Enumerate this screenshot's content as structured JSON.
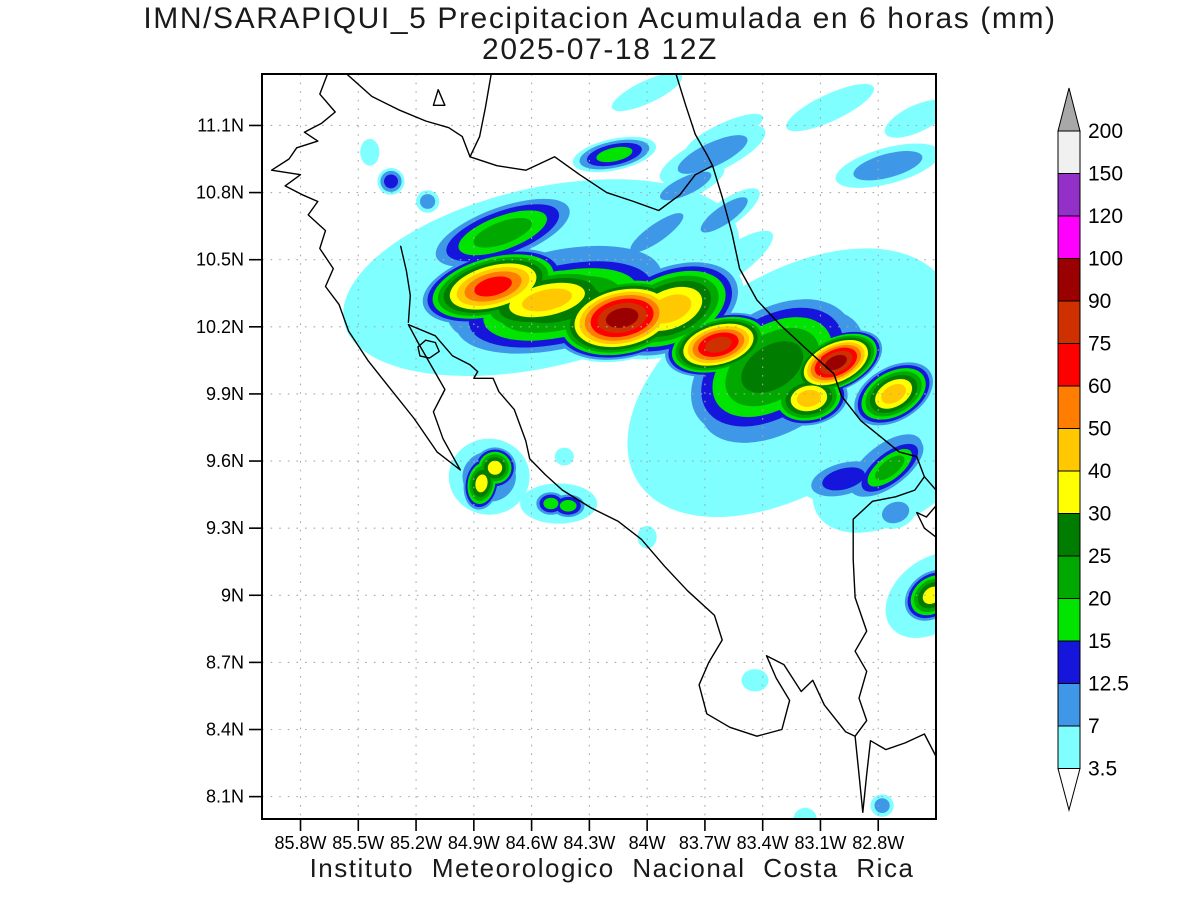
{
  "title": "IMN/SARAPIQUI_5 Precipitacion Acumulada en 6 horas (mm)",
  "subtitle": "2025-07-18 12Z",
  "footer": "Instituto Meteorologico Nacional Costa Rica",
  "axes": {
    "lat_tick_labels": [
      "11.1N",
      "10.8N",
      "10.5N",
      "10.2N",
      "9.9N",
      "9.6N",
      "9.3N",
      "9N",
      "8.7N",
      "8.4N",
      "8.1N"
    ],
    "lat_tick_values": [
      11.1,
      10.8,
      10.5,
      10.2,
      9.9,
      9.6,
      9.3,
      9.0,
      8.7,
      8.4,
      8.1
    ],
    "lon_tick_labels": [
      "85.8W",
      "85.5W",
      "85.2W",
      "84.9W",
      "84.6W",
      "84.3W",
      "84W",
      "83.7W",
      "83.4W",
      "83.1W",
      "82.8W"
    ],
    "lon_tick_values": [
      85.8,
      85.5,
      85.2,
      84.9,
      84.6,
      84.3,
      84.0,
      83.7,
      83.4,
      83.1,
      82.8
    ],
    "lon_left_w": 86.0,
    "lon_right_w": 82.5,
    "lat_top": 11.33,
    "lat_bottom": 8.0,
    "grid_color": "#A8A8A8",
    "frame_color": "#000000"
  },
  "colorbar": {
    "levels": [
      3.5,
      7,
      12.5,
      15,
      20,
      25,
      30,
      40,
      50,
      60,
      75,
      90,
      100,
      120,
      150,
      200
    ],
    "labels": [
      "3.5",
      "7",
      "12.5",
      "15",
      "20",
      "25",
      "30",
      "40",
      "50",
      "60",
      "75",
      "90",
      "100",
      "120",
      "150",
      "200"
    ],
    "colors": [
      "#7FFFFF",
      "#3F97E8",
      "#1515DC",
      "#00E400",
      "#00A800",
      "#007C00",
      "#FFFF00",
      "#FFC800",
      "#FF7D00",
      "#FF0000",
      "#CF3000",
      "#9A0000",
      "#FF00FF",
      "#9230C8",
      "#F0F0F0"
    ],
    "over_color": "#A8A8A8",
    "under_color": "#FFFFFF",
    "outline_color": "#000000"
  },
  "chart_data": {
    "type": "heatmap",
    "variable": "Precipitacion Acumulada en 6 horas",
    "units": "mm",
    "source": "IMN/SARAPIQUI_5",
    "valid_time": "2025-07-18 12Z",
    "region": "Costa Rica",
    "lon_range_w": [
      86.0,
      82.5
    ],
    "lat_range": [
      8.0,
      11.33
    ],
    "levels_mm": [
      3.5,
      7,
      12.5,
      15,
      20,
      25,
      30,
      40,
      50,
      60,
      75,
      90,
      100,
      120,
      150,
      200
    ],
    "cells_format": [
      "lon_w",
      "lat",
      "peak_mm",
      "rx_deg",
      "ry_deg",
      "rot_deg"
    ],
    "cells": [
      [
        84.55,
        10.42,
        5,
        1.05,
        0.4,
        -13
      ],
      [
        83.25,
        9.95,
        5,
        0.95,
        0.48,
        -33
      ],
      [
        82.7,
        9.6,
        5,
        0.5,
        0.25,
        -35
      ],
      [
        84.48,
        10.34,
        10,
        0.86,
        0.3,
        -13
      ],
      [
        83.3,
        9.98,
        10,
        0.72,
        0.36,
        -33
      ],
      [
        84.45,
        10.3,
        28,
        0.62,
        0.22,
        -13
      ],
      [
        83.35,
        10.02,
        28,
        0.52,
        0.28,
        -33
      ],
      [
        84.75,
        10.62,
        22,
        0.42,
        0.13,
        -20
      ],
      [
        84.8,
        10.38,
        70,
        0.4,
        0.16,
        -15
      ],
      [
        84.52,
        10.32,
        45,
        0.46,
        0.16,
        -12
      ],
      [
        84.13,
        10.24,
        95,
        0.38,
        0.19,
        -12
      ],
      [
        83.88,
        10.28,
        45,
        0.4,
        0.2,
        -22
      ],
      [
        83.63,
        10.12,
        85,
        0.3,
        0.14,
        -15
      ],
      [
        83.02,
        10.04,
        95,
        0.27,
        0.13,
        -25
      ],
      [
        83.16,
        9.88,
        45,
        0.22,
        0.13,
        -10
      ],
      [
        82.72,
        9.9,
        45,
        0.24,
        0.13,
        -30
      ],
      [
        84.79,
        9.57,
        35,
        0.12,
        0.1,
        0
      ],
      [
        84.86,
        9.5,
        35,
        0.1,
        0.13,
        10
      ],
      [
        84.82,
        9.53,
        10,
        0.21,
        0.17,
        0
      ],
      [
        84.5,
        9.41,
        18,
        0.09,
        0.06,
        0
      ],
      [
        84.41,
        9.4,
        18,
        0.1,
        0.06,
        0
      ],
      [
        84.46,
        9.41,
        5,
        0.2,
        0.09,
        0
      ],
      [
        84.43,
        9.62,
        5,
        0.05,
        0.04,
        0
      ],
      [
        84.0,
        9.26,
        5,
        0.05,
        0.05,
        0
      ],
      [
        84.17,
        10.97,
        18,
        0.22,
        0.07,
        -12
      ],
      [
        83.66,
        10.97,
        10,
        0.3,
        0.08,
        -25
      ],
      [
        83.8,
        10.83,
        10,
        0.22,
        0.06,
        -25
      ],
      [
        83.05,
        11.18,
        5,
        0.25,
        0.06,
        -25
      ],
      [
        82.75,
        10.92,
        10,
        0.28,
        0.08,
        -15
      ],
      [
        83.95,
        10.62,
        10,
        0.25,
        0.06,
        -35
      ],
      [
        83.58,
        10.48,
        5,
        0.28,
        0.07,
        -35
      ],
      [
        83.6,
        10.7,
        10,
        0.22,
        0.06,
        -35
      ],
      [
        84.0,
        11.25,
        5,
        0.2,
        0.05,
        -25
      ],
      [
        83.6,
        11.06,
        5,
        0.22,
        0.05,
        -25
      ],
      [
        82.6,
        11.13,
        5,
        0.18,
        0.06,
        -25
      ],
      [
        85.33,
        10.85,
        14,
        0.07,
        0.06,
        -20
      ],
      [
        85.44,
        10.98,
        5,
        0.05,
        0.06,
        0
      ],
      [
        85.14,
        10.76,
        10,
        0.06,
        0.05,
        0
      ],
      [
        82.74,
        9.57,
        22,
        0.24,
        0.09,
        -38
      ],
      [
        82.76,
        9.58,
        10,
        0.34,
        0.14,
        -38
      ],
      [
        82.98,
        9.52,
        14,
        0.22,
        0.09,
        -15
      ],
      [
        83.3,
        9.56,
        5,
        0.45,
        0.1,
        -12
      ],
      [
        82.71,
        9.37,
        10,
        0.11,
        0.07,
        -20
      ],
      [
        82.52,
        9.0,
        35,
        0.17,
        0.11,
        -38
      ],
      [
        82.52,
        9.0,
        5,
        0.27,
        0.16,
        -38
      ],
      [
        83.44,
        8.62,
        5,
        0.07,
        0.05,
        0
      ],
      [
        83.18,
        8.0,
        5,
        0.06,
        0.05,
        0
      ],
      [
        82.78,
        8.06,
        10,
        0.06,
        0.05,
        0
      ]
    ]
  },
  "geo": {
    "coast_color": "#000000",
    "coastlines": [
      [
        [
          85.66,
          11.33
        ],
        [
          85.7,
          11.24
        ],
        [
          85.62,
          11.16
        ],
        [
          85.69,
          11.11
        ],
        [
          85.78,
          11.07
        ],
        [
          85.71,
          11.03
        ],
        [
          85.82,
          11.0
        ],
        [
          85.86,
          10.95
        ],
        [
          85.95,
          10.9
        ],
        [
          85.8,
          10.88
        ],
        [
          85.88,
          10.83
        ],
        [
          85.79,
          10.79
        ],
        [
          85.71,
          10.76
        ],
        [
          85.76,
          10.7
        ],
        [
          85.67,
          10.63
        ],
        [
          85.7,
          10.55
        ],
        [
          85.63,
          10.46
        ],
        [
          85.67,
          10.38
        ],
        [
          85.6,
          10.3
        ],
        [
          85.55,
          10.18
        ],
        [
          85.45,
          10.05
        ],
        [
          85.34,
          9.93
        ],
        [
          85.21,
          9.79
        ],
        [
          85.09,
          9.64
        ],
        [
          84.97,
          9.56
        ],
        [
          85.06,
          9.7
        ],
        [
          85.11,
          9.82
        ],
        [
          85.05,
          9.92
        ],
        [
          85.13,
          10.04
        ],
        [
          85.19,
          10.13
        ],
        [
          85.24,
          10.21
        ],
        [
          85.1,
          10.16
        ],
        [
          85.01,
          10.07
        ],
        [
          84.92,
          10.03
        ],
        [
          84.88,
          10.0
        ],
        [
          84.9,
          9.97
        ],
        [
          84.8,
          9.97
        ],
        [
          84.77,
          9.91
        ],
        [
          84.69,
          9.83
        ],
        [
          84.63,
          9.69
        ],
        [
          84.61,
          9.61
        ],
        [
          84.53,
          9.54
        ],
        [
          84.44,
          9.47
        ],
        [
          84.29,
          9.39
        ],
        [
          84.15,
          9.33
        ],
        [
          84.03,
          9.25
        ],
        [
          83.91,
          9.13
        ],
        [
          83.79,
          9.02
        ],
        [
          83.65,
          8.91
        ],
        [
          83.61,
          8.8
        ],
        [
          83.68,
          8.7
        ],
        [
          83.73,
          8.6
        ],
        [
          83.69,
          8.47
        ],
        [
          83.57,
          8.41
        ],
        [
          83.43,
          8.37
        ],
        [
          83.3,
          8.4
        ],
        [
          83.26,
          8.53
        ],
        [
          83.33,
          8.63
        ],
        [
          83.38,
          8.73
        ],
        [
          83.29,
          8.69
        ],
        [
          83.2,
          8.57
        ],
        [
          83.14,
          8.62
        ],
        [
          83.08,
          8.51
        ],
        [
          82.97,
          8.39
        ],
        [
          82.92,
          8.37
        ],
        [
          82.9,
          8.2
        ],
        [
          82.88,
          8.03
        ],
        [
          82.86,
          8.2
        ],
        [
          82.84,
          8.35
        ],
        [
          82.76,
          8.31
        ],
        [
          82.66,
          8.34
        ],
        [
          82.56,
          8.38
        ],
        [
          82.5,
          8.28
        ]
      ],
      [
        [
          83.85,
          11.33
        ],
        [
          83.8,
          11.19
        ],
        [
          83.75,
          11.06
        ],
        [
          83.69,
          10.97
        ],
        [
          83.66,
          10.92
        ],
        [
          83.61,
          10.78
        ],
        [
          83.56,
          10.62
        ],
        [
          83.52,
          10.46
        ],
        [
          83.43,
          10.32
        ],
        [
          83.31,
          10.21
        ],
        [
          83.16,
          10.09
        ],
        [
          83.03,
          9.99
        ],
        [
          82.99,
          9.89
        ],
        [
          82.89,
          9.78
        ],
        [
          82.79,
          9.71
        ],
        [
          82.69,
          9.64
        ],
        [
          82.6,
          9.62
        ],
        [
          82.56,
          9.53
        ],
        [
          82.5,
          9.47
        ]
      ],
      [
        [
          84.92,
          10.96
        ],
        [
          84.78,
          10.92
        ],
        [
          84.63,
          10.9
        ],
        [
          84.48,
          10.96
        ],
        [
          84.35,
          10.88
        ],
        [
          84.21,
          10.8
        ],
        [
          84.07,
          10.76
        ],
        [
          83.94,
          10.72
        ],
        [
          83.83,
          10.79
        ],
        [
          83.75,
          10.88
        ],
        [
          83.66,
          10.92
        ]
      ],
      [
        [
          85.56,
          11.33
        ],
        [
          85.43,
          11.23
        ],
        [
          85.29,
          11.17
        ],
        [
          85.15,
          11.12
        ],
        [
          85.03,
          11.09
        ],
        [
          84.96,
          11.05
        ],
        [
          84.92,
          10.96
        ],
        [
          84.87,
          11.05
        ],
        [
          84.84,
          11.18
        ],
        [
          84.81,
          11.33
        ]
      ],
      [
        [
          82.56,
          9.53
        ],
        [
          82.61,
          9.47
        ],
        [
          82.71,
          9.44
        ],
        [
          82.83,
          9.42
        ],
        [
          82.93,
          9.34
        ],
        [
          82.93,
          9.16
        ],
        [
          82.92,
          8.99
        ],
        [
          82.86,
          8.84
        ],
        [
          82.92,
          8.75
        ],
        [
          82.86,
          8.66
        ],
        [
          82.9,
          8.54
        ],
        [
          82.86,
          8.44
        ],
        [
          82.92,
          8.37
        ]
      ],
      [
        [
          85.28,
          10.56
        ],
        [
          85.25,
          10.45
        ],
        [
          85.23,
          10.34
        ],
        [
          85.24,
          10.22
        ]
      ],
      [
        [
          82.5,
          9.4
        ],
        [
          82.55,
          9.35
        ],
        [
          82.6,
          9.37
        ],
        [
          82.56,
          9.3
        ],
        [
          82.5,
          9.26
        ]
      ]
    ],
    "islands": [
      [
        [
          85.085,
          11.26
        ],
        [
          85.11,
          11.19
        ],
        [
          85.05,
          11.19
        ]
      ],
      [
        [
          85.19,
          10.11
        ],
        [
          85.15,
          10.14
        ],
        [
          85.1,
          10.13
        ],
        [
          85.08,
          10.09
        ],
        [
          85.13,
          10.06
        ],
        [
          85.18,
          10.07
        ]
      ]
    ]
  }
}
